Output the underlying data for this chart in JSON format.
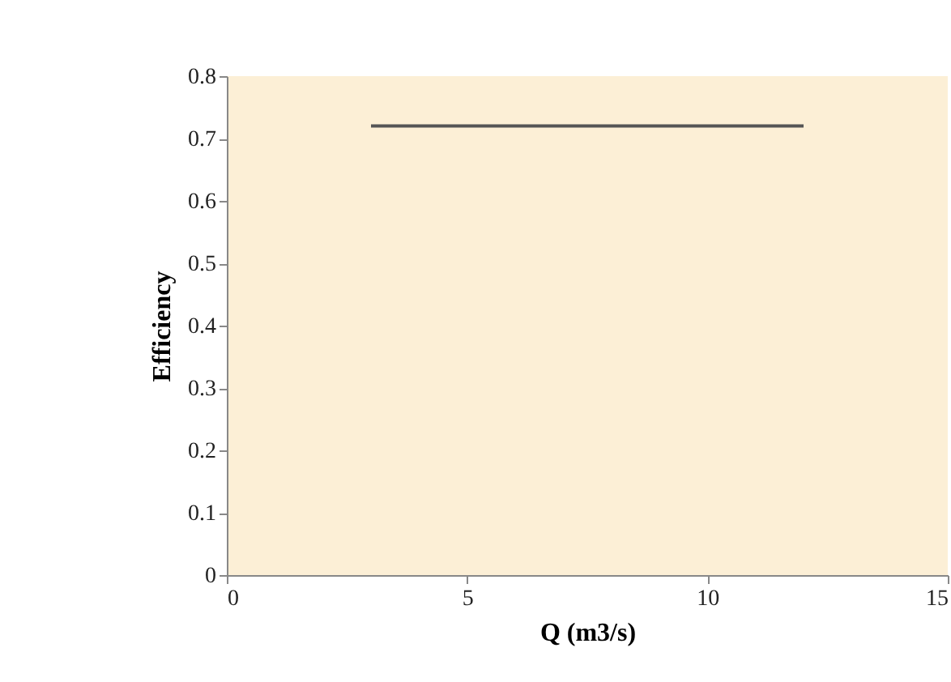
{
  "chart_data": {
    "type": "line",
    "xlabel": "Q (m3/s)",
    "ylabel": "Efficiency",
    "x": [
      3,
      12
    ],
    "series": [
      {
        "color": "#555555",
        "values": [
          0.72,
          0.72
        ]
      }
    ],
    "xlim": [
      0,
      15
    ],
    "xticks": [
      0,
      5,
      10,
      15
    ],
    "ylim": [
      0,
      0.8
    ],
    "yticks": [
      0,
      0.1,
      0.2,
      0.3,
      0.4,
      0.5,
      0.6,
      0.7,
      0.8
    ],
    "grid": false,
    "marker": "none",
    "line_style": "solid"
  }
}
